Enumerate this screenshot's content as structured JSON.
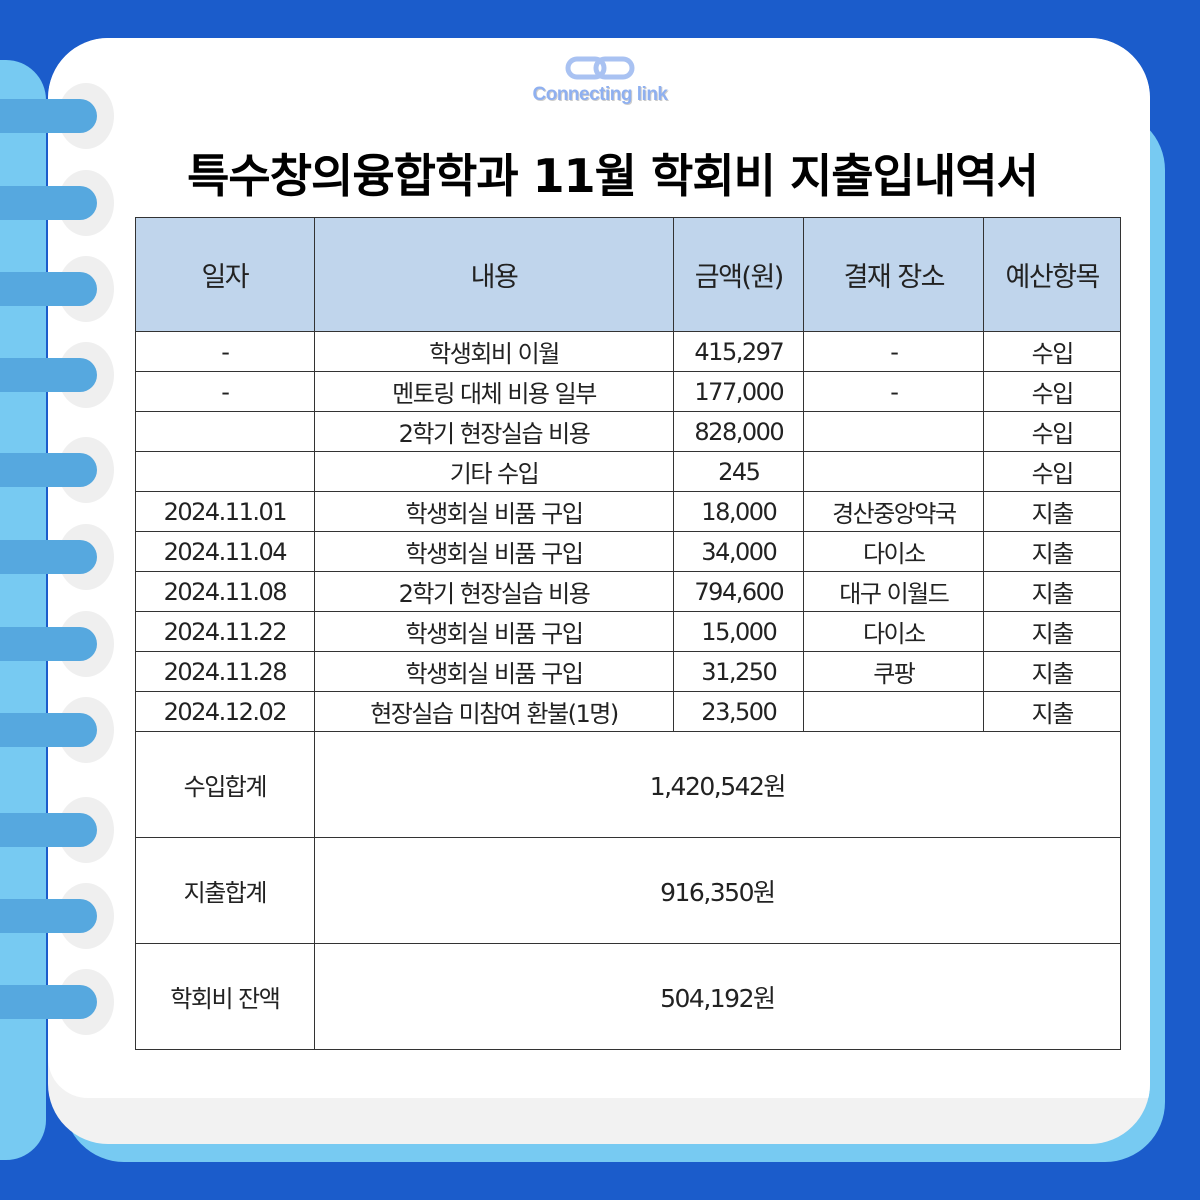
{
  "logo": {
    "text": "Connecting link"
  },
  "title": "특수창의융합학과 11월 학회비 지출입내역서",
  "table": {
    "headers": [
      "일자",
      "내용",
      "금액(원)",
      "결재 장소",
      "예산항목"
    ],
    "rows": [
      [
        "-",
        "학생회비 이월",
        "415,297",
        "-",
        "수입"
      ],
      [
        "-",
        "멘토링 대체 비용 일부",
        "177,000",
        "-",
        "수입"
      ],
      [
        "",
        "2학기 현장실습 비용",
        "828,000",
        "",
        "수입"
      ],
      [
        "",
        "기타 수입",
        "245",
        "",
        "수입"
      ],
      [
        "2024.11.01",
        "학생회실 비품 구입",
        "18,000",
        "경산중앙약국",
        "지출"
      ],
      [
        "2024.11.04",
        "학생회실 비품 구입",
        "34,000",
        "다이소",
        "지출"
      ],
      [
        "2024.11.08",
        "2학기 현장실습 비용",
        "794,600",
        "대구 이월드",
        "지출"
      ],
      [
        "2024.11.22",
        "학생회실 비품 구입",
        "15,000",
        "다이소",
        "지출"
      ],
      [
        "2024.11.28",
        "학생회실 비품 구입",
        "31,250",
        "쿠팡",
        "지출"
      ],
      [
        "2024.12.02",
        "현장실습 미참여 환불(1명)",
        "23,500",
        "",
        "지출"
      ]
    ],
    "summary": [
      {
        "label": "수입합계",
        "value": "1,420,542원"
      },
      {
        "label": "지출합계",
        "value": "916,350원"
      },
      {
        "label": "학회비 잔액",
        "value": "504,192원"
      }
    ]
  },
  "colors": {
    "background": "#1b5ccb",
    "header_fill": "#c0d5ec",
    "accent_light": "#77caf2"
  }
}
